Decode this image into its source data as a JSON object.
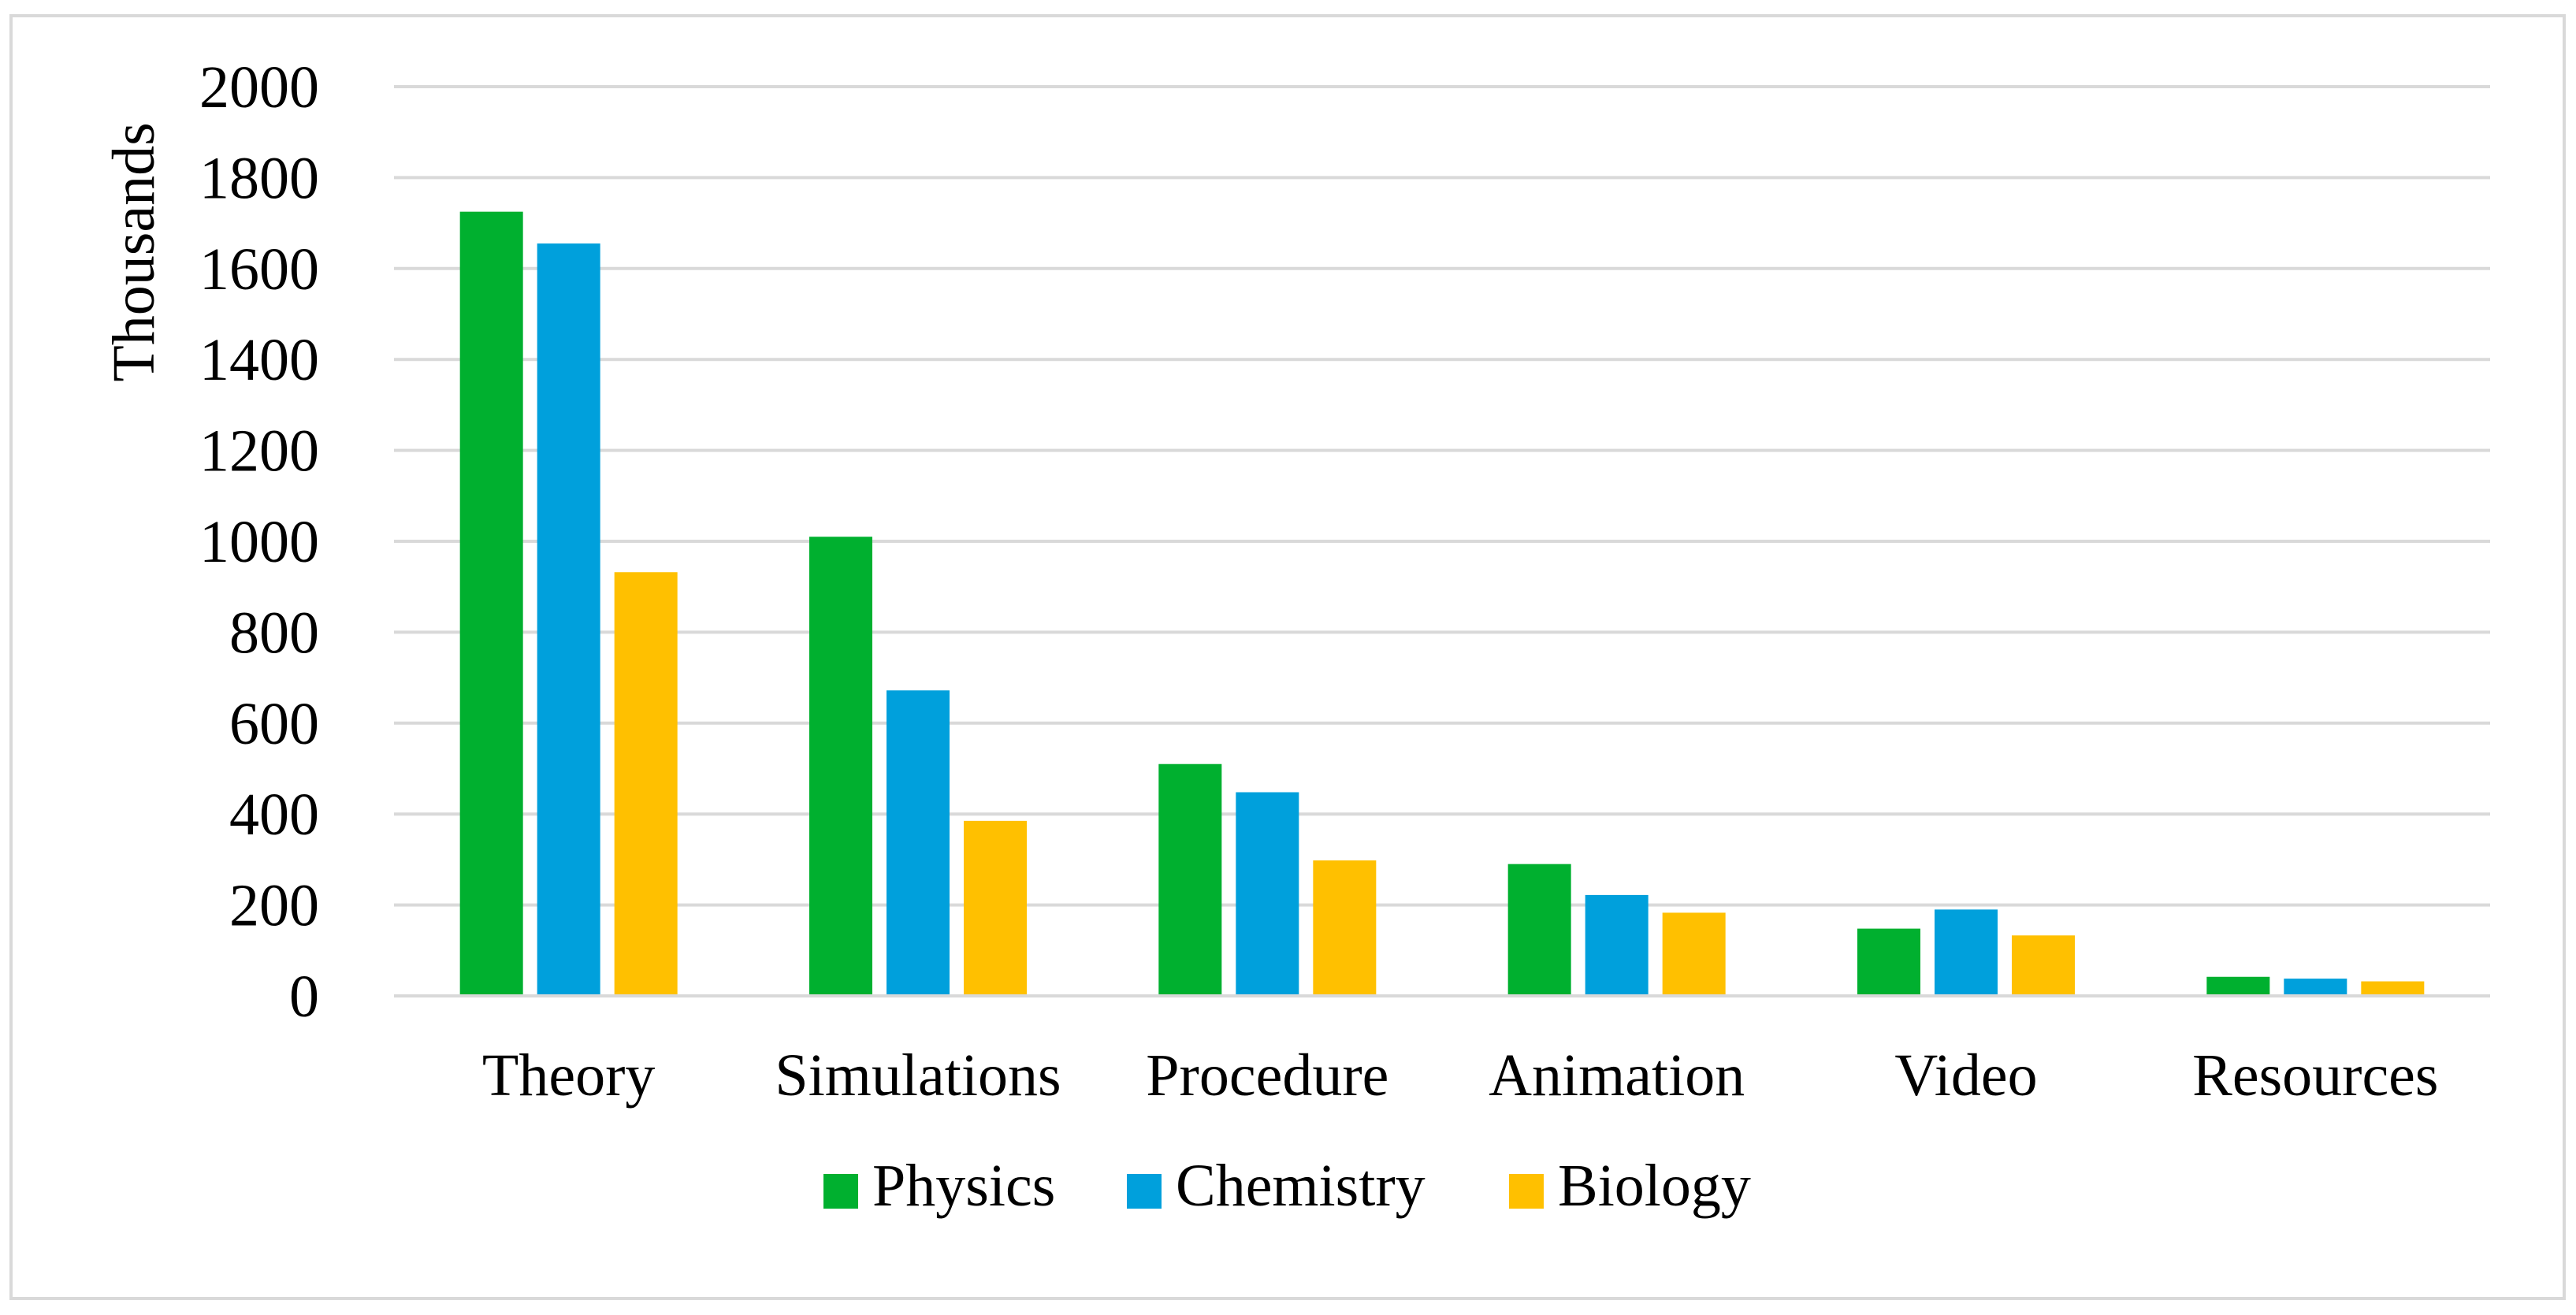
{
  "chart_data": {
    "type": "bar",
    "title": "",
    "xlabel": "",
    "ylabel": "Thousands",
    "ylim": [
      0,
      2000
    ],
    "yticks": [
      0,
      200,
      400,
      600,
      800,
      1000,
      1200,
      1400,
      1600,
      1800,
      2000
    ],
    "grid": true,
    "legend_position": "bottom",
    "categories": [
      "Theory",
      "Simulations",
      "Procedure",
      "Animation",
      "Video",
      "Resources"
    ],
    "series": [
      {
        "name": "Physics",
        "color": "#00b02f",
        "values": [
          1725,
          1010,
          510,
          290,
          148,
          42
        ]
      },
      {
        "name": "Chemistry",
        "color": "#00a0dc",
        "values": [
          1655,
          672,
          448,
          222,
          190,
          38
        ]
      },
      {
        "name": "Biology",
        "color": "#ffc000",
        "values": [
          932,
          385,
          298,
          183,
          133,
          32
        ]
      }
    ]
  }
}
